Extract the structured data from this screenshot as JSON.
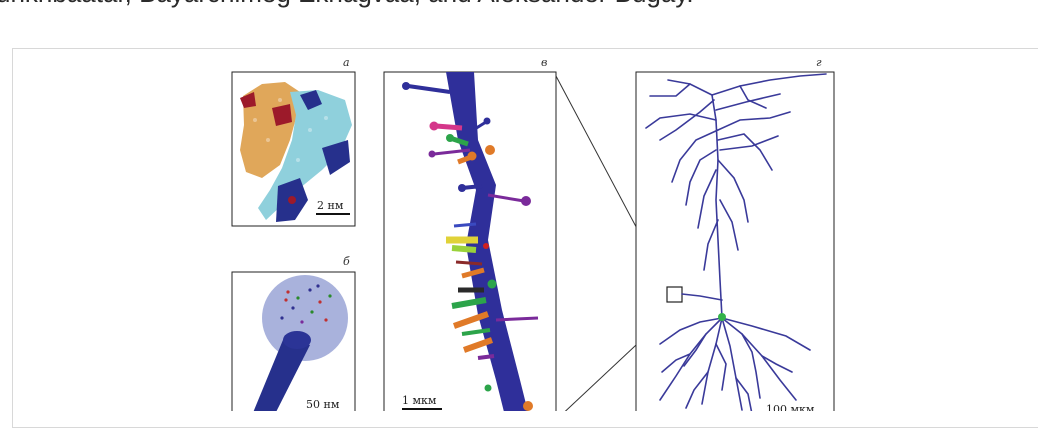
{
  "header": {
    "authors_line": "unkhbaatar, Bayarchimeg Ekhagvaa, and Aleksander Bugay."
  },
  "figure": {
    "panels": {
      "a": {
        "letter": "а",
        "scale_label": "2 нм"
      },
      "b": {
        "letter": "б",
        "scale_label": "50 нм"
      },
      "v": {
        "letter": "в",
        "scale_label": "1 мкм"
      },
      "g": {
        "letter": "г",
        "scale_label": "100 мкм"
      }
    },
    "colors": {
      "neuron": "#3a3a9a",
      "dendrite": "#2f2f9a",
      "soma_marker": "#33b24a",
      "protein_orange": "#e0a75a",
      "protein_cyan": "#8fd0dc",
      "protein_navy": "#26308c",
      "protein_red": "#9c1a2a",
      "sphere_fill": "#9aa4d6"
    }
  }
}
